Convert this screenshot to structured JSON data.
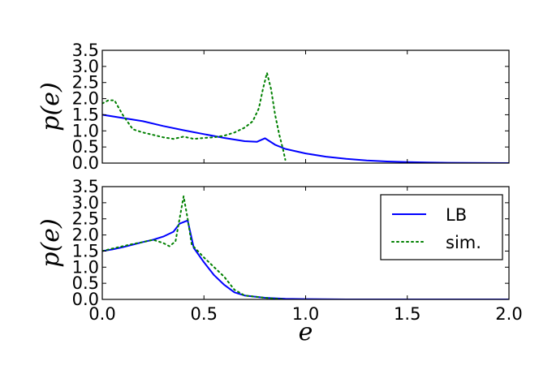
{
  "chart_data": [
    {
      "type": "line",
      "title": "",
      "xlabel": "",
      "ylabel": "p(e)",
      "xlim": [
        0.0,
        2.0
      ],
      "ylim": [
        0.0,
        3.5
      ],
      "yticks": [
        "0.0",
        "0.5",
        "1.0",
        "1.5",
        "2.0",
        "2.5",
        "3.0",
        "3.5"
      ],
      "xticks": [],
      "legend": null,
      "series": [
        {
          "name": "LB",
          "style": "solid",
          "color": "#0000ff",
          "x": [
            0.0,
            0.1,
            0.2,
            0.3,
            0.4,
            0.5,
            0.6,
            0.7,
            0.76,
            0.8,
            0.85,
            0.9,
            1.0,
            1.1,
            1.2,
            1.3,
            1.4,
            1.5,
            1.6,
            1.7,
            1.8,
            2.0
          ],
          "y": [
            1.5,
            1.4,
            1.3,
            1.15,
            1.02,
            0.9,
            0.78,
            0.68,
            0.66,
            0.77,
            0.57,
            0.44,
            0.3,
            0.2,
            0.13,
            0.08,
            0.05,
            0.03,
            0.02,
            0.01,
            0.005,
            0.0
          ]
        },
        {
          "name": "sim.",
          "style": "dotted",
          "color": "#008000",
          "x": [
            0.0,
            0.03,
            0.06,
            0.1,
            0.15,
            0.2,
            0.3,
            0.35,
            0.4,
            0.45,
            0.5,
            0.55,
            0.6,
            0.65,
            0.7,
            0.74,
            0.77,
            0.79,
            0.81,
            0.83,
            0.85,
            0.87,
            0.89,
            0.9
          ],
          "y": [
            1.85,
            1.95,
            1.95,
            1.5,
            1.05,
            0.95,
            0.8,
            0.75,
            0.82,
            0.75,
            0.78,
            0.8,
            0.85,
            0.95,
            1.1,
            1.3,
            1.7,
            2.3,
            2.8,
            2.3,
            1.5,
            0.9,
            0.4,
            0.1
          ]
        }
      ]
    },
    {
      "type": "line",
      "title": "",
      "xlabel": "e",
      "ylabel": "p(e)",
      "xlim": [
        0.0,
        2.0
      ],
      "ylim": [
        0.0,
        3.5
      ],
      "yticks": [
        "0.0",
        "0.5",
        "1.0",
        "1.5",
        "2.0",
        "2.5",
        "3.0",
        "3.5"
      ],
      "xticks": [
        "0.0",
        "0.5",
        "1.0",
        "1.5",
        "2.0"
      ],
      "legend": {
        "placement": "upper-right",
        "entries": [
          "LB",
          "sim."
        ]
      },
      "series": [
        {
          "name": "LB",
          "style": "solid",
          "color": "#0000ff",
          "x": [
            0.0,
            0.05,
            0.1,
            0.15,
            0.2,
            0.25,
            0.3,
            0.35,
            0.38,
            0.4,
            0.42,
            0.45,
            0.5,
            0.55,
            0.6,
            0.65,
            0.7,
            0.8,
            0.9,
            1.0,
            1.2,
            1.5,
            2.0
          ],
          "y": [
            1.5,
            1.55,
            1.62,
            1.7,
            1.78,
            1.85,
            1.95,
            2.1,
            2.35,
            2.4,
            2.45,
            1.6,
            1.15,
            0.75,
            0.45,
            0.22,
            0.12,
            0.05,
            0.02,
            0.01,
            0.0,
            0.0,
            0.0
          ]
        },
        {
          "name": "sim.",
          "style": "dotted",
          "color": "#008000",
          "x": [
            0.0,
            0.05,
            0.1,
            0.15,
            0.2,
            0.25,
            0.3,
            0.33,
            0.36,
            0.38,
            0.4,
            0.42,
            0.44,
            0.5,
            0.55,
            0.6,
            0.65,
            0.7,
            0.8,
            0.9
          ],
          "y": [
            1.5,
            1.58,
            1.65,
            1.72,
            1.78,
            1.85,
            1.75,
            1.65,
            1.8,
            2.5,
            3.2,
            2.5,
            1.7,
            1.3,
            1.0,
            0.7,
            0.3,
            0.12,
            0.05,
            0.0
          ]
        }
      ]
    }
  ]
}
